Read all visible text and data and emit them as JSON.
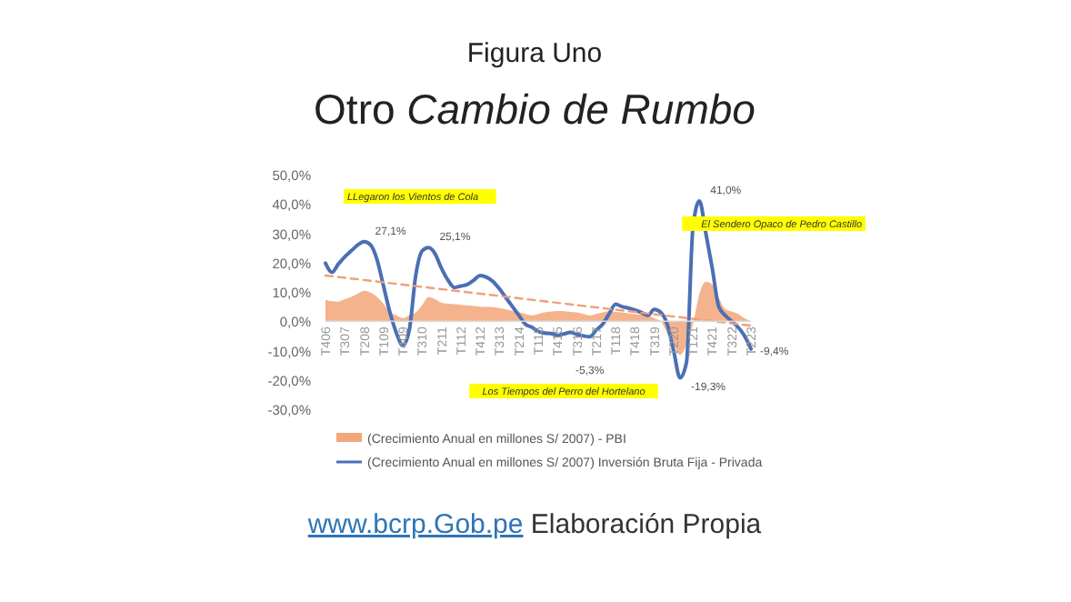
{
  "chart_data": {
    "type": "area",
    "title": "Figura Uno",
    "subtitle": "Otro Cambio de Rumbo",
    "categories": [
      "T406",
      null,
      null,
      "T307",
      null,
      null,
      "T208",
      null,
      null,
      "T109",
      null,
      null,
      "T409",
      null,
      null,
      "T310",
      null,
      null,
      "T211",
      null,
      null,
      "T112",
      null,
      null,
      "T412",
      null,
      null,
      "T313",
      null,
      null,
      "T214",
      null,
      null,
      "T115",
      null,
      null,
      "T415",
      null,
      null,
      "T316",
      null,
      null,
      "T217",
      null,
      null,
      "T118",
      null,
      null,
      "T418",
      null,
      null,
      "T319",
      null,
      null,
      "T220",
      null,
      null,
      "T121",
      null,
      null,
      "T421",
      null,
      null,
      "T322",
      null,
      null,
      "T223"
    ],
    "series": [
      {
        "name": "(Crecimiento Anual en millones S/ 2007) - PBI",
        "color": "#f2a679",
        "values": [
          7.3,
          6.8,
          6.7,
          7.5,
          8.3,
          9.4,
          10.4,
          9.8,
          8.3,
          6,
          3,
          2,
          1,
          2,
          3,
          5.5,
          8.3,
          7.5,
          6.3,
          6,
          5.8,
          5.6,
          5.4,
          5.2,
          5,
          4.9,
          4.8,
          4.5,
          4,
          3.5,
          3,
          2.5,
          2,
          2.5,
          3,
          3.3,
          3.5,
          3.4,
          3.2,
          3,
          2.5,
          2,
          2.5,
          3,
          3.5,
          3.2,
          3,
          2.7,
          2.4,
          2.2,
          2,
          1,
          0,
          -4,
          -8,
          -11.5,
          -8,
          -1,
          9.4,
          13.5,
          12.5,
          8,
          4.2,
          3.3,
          2.5,
          1,
          0
        ]
      },
      {
        "type": "line",
        "name": "(Crecimiento Anual en millones S/ 2007) Inversión Bruta Fija - Privada",
        "color": "#4a6fb5",
        "values": [
          19.8,
          16.7,
          19.5,
          22,
          24,
          26,
          27.1,
          26,
          21,
          12,
          3,
          -4,
          -8.3,
          -3,
          15.6,
          24,
          25.1,
          23,
          18,
          14,
          11.5,
          12,
          12.5,
          14,
          15.6,
          15,
          13.5,
          11,
          8,
          5,
          2,
          -1,
          -2,
          -3.5,
          -4,
          -4.2,
          -4.8,
          -4.3,
          -3.8,
          -4.5,
          -5,
          -5.3,
          -3,
          -1,
          2.5,
          5.8,
          5,
          4.5,
          3.8,
          3,
          2,
          4,
          3,
          -1,
          -10,
          -19.3,
          -14,
          32,
          41,
          30,
          18,
          5,
          2,
          0,
          -2,
          -5,
          -9.4
        ],
        "value_labels": [
          null,
          null,
          null,
          null,
          null,
          null,
          "27,1%",
          null,
          null,
          null,
          null,
          null,
          null,
          null,
          null,
          null,
          "25,1%",
          null,
          null,
          null,
          null,
          null,
          null,
          null,
          null,
          null,
          null,
          null,
          null,
          null,
          null,
          null,
          null,
          null,
          null,
          null,
          null,
          null,
          null,
          null,
          null,
          "-5,3%",
          null,
          null,
          null,
          null,
          null,
          null,
          null,
          null,
          null,
          null,
          null,
          null,
          null,
          "-19,3%",
          null,
          null,
          "41,0%",
          null,
          null,
          null,
          null,
          null,
          null,
          null,
          "-9,4%"
        ]
      },
      {
        "type": "line",
        "color": "#ef9f7a",
        "line_style": "dashed",
        "values": [
          15.6,
          null,
          null,
          null,
          null,
          null,
          null,
          null,
          null,
          null,
          null,
          null,
          null,
          null,
          null,
          null,
          null,
          null,
          null,
          null,
          null,
          null,
          null,
          null,
          null,
          null,
          null,
          null,
          null,
          null,
          null,
          null,
          null,
          null,
          null,
          null,
          null,
          null,
          null,
          null,
          null,
          null,
          null,
          null,
          null,
          null,
          null,
          null,
          null,
          null,
          null,
          null,
          null,
          null,
          null,
          null,
          null,
          null,
          null,
          null,
          null,
          null,
          null,
          null,
          null,
          null,
          -1.5
        ]
      }
    ],
    "ylim": [
      -30,
      50
    ],
    "yticks": [
      {
        "value": -30,
        "label": "-30,0%"
      },
      {
        "value": -20,
        "label": "-20,0%"
      },
      {
        "value": -10,
        "label": "-10,0%"
      },
      {
        "value": 0,
        "label": "0,0%"
      },
      {
        "value": 10,
        "label": "10,0%"
      },
      {
        "value": 20,
        "label": "20,0%"
      },
      {
        "value": 30,
        "label": "30,0%"
      },
      {
        "value": 40,
        "label": "40,0%"
      },
      {
        "value": 50,
        "label": "50,0%"
      }
    ],
    "grid": false,
    "legend": "bottom",
    "marker": "none",
    "annotations": [
      "LLegaron los Vientos de Cola",
      "El Sendero Opaco de Pedro Castillo",
      "Los Tiempos del Perro del Hortelano",
      "www.bcrp.Gob.pe Elaboración Propia"
    ]
  }
}
